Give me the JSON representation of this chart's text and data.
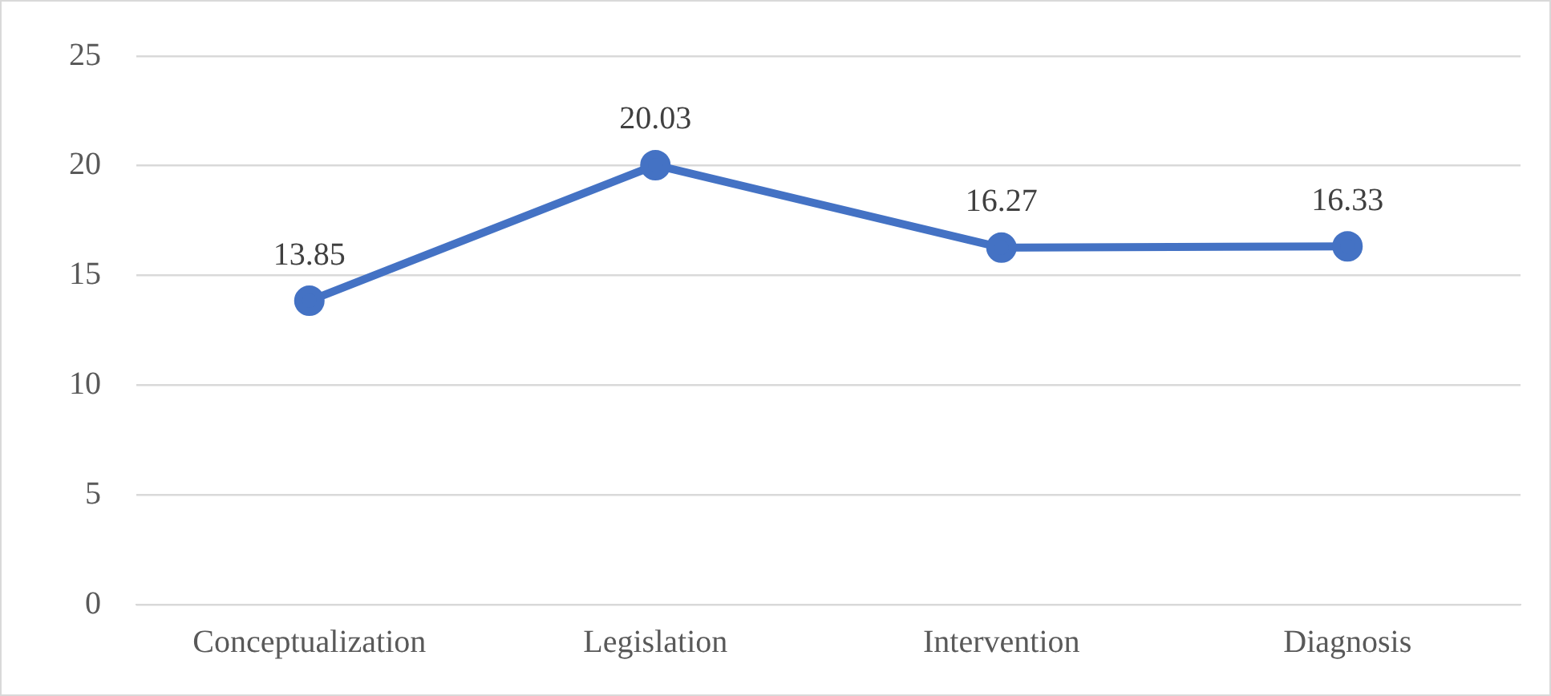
{
  "chart_data": {
    "type": "line",
    "categories": [
      "Conceptualization",
      "Legislation",
      "Intervention",
      "Diagnosis"
    ],
    "series": [
      {
        "color": "#4472c4",
        "values": [
          13.85,
          20.03,
          16.27,
          16.33
        ]
      }
    ],
    "ylim": [
      0,
      25
    ],
    "yticks": [
      0,
      5,
      10,
      15,
      20,
      25
    ],
    "grid": "y",
    "legend": false,
    "marker": "circle",
    "line_style": "solid",
    "data_labels": true
  }
}
